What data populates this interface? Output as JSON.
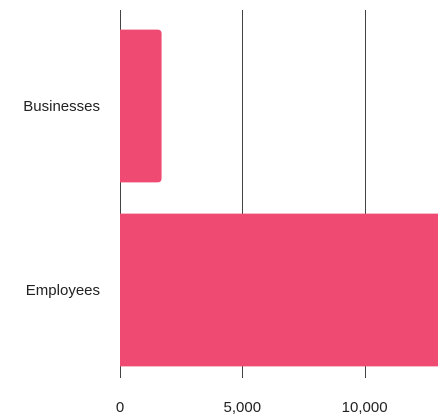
{
  "chart_data": {
    "type": "bar",
    "orientation": "horizontal",
    "categories": [
      "Businesses",
      "Employees"
    ],
    "series": [
      {
        "values": [
          1700,
          13500
        ]
      }
    ],
    "xlim": [
      0,
      13000
    ],
    "xticks": [
      {
        "value": 0,
        "label": "0"
      },
      {
        "value": 5000,
        "label": "5,000"
      },
      {
        "value": 10000,
        "label": "10,000"
      }
    ],
    "grid": true,
    "legend": "none",
    "title": "",
    "xlabel": "",
    "ylabel": "",
    "colors": {
      "bar": "#ee4a72",
      "grid": "#444444"
    }
  }
}
